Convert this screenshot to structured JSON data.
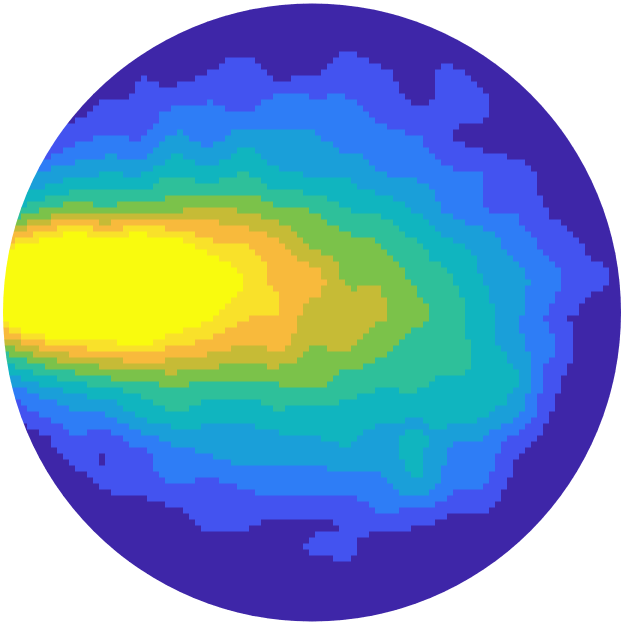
{
  "chart_data": {
    "type": "heatmap",
    "shape": "disk",
    "colormap": "parula",
    "colors": [
      "#3e26a8",
      "#4353f0",
      "#2e7df6",
      "#1a9fd9",
      "#10b5bf",
      "#2ec09a",
      "#7bc24a",
      "#c6bb36",
      "#f8ba3c",
      "#f9e12a",
      "#f9fb0e"
    ],
    "value_range": [
      0,
      1
    ],
    "hotspots": [
      {
        "x": -0.85,
        "y": 0.07,
        "value": 1.0,
        "spread_x": 0.32,
        "spread_y": 0.17
      },
      {
        "x": -0.62,
        "y": 0.08,
        "value": 0.35,
        "spread_x": 0.55,
        "spread_y": 0.3
      },
      {
        "x": -0.13,
        "y": 0.07,
        "value": 0.42,
        "spread_x": 0.38,
        "spread_y": 0.3
      },
      {
        "x": 0.4,
        "y": -0.15,
        "value": 0.22,
        "spread_x": 0.3,
        "spread_y": 0.28
      },
      {
        "x": 0.58,
        "y": -0.23,
        "value": 0.12,
        "spread_x": 0.1,
        "spread_y": 0.08
      },
      {
        "x": 0.37,
        "y": -0.55,
        "value": 0.14,
        "spread_x": 0.12,
        "spread_y": 0.08
      }
    ],
    "background_value": 0.14,
    "edge_falloff": 0.13,
    "noise": 0.05
  }
}
